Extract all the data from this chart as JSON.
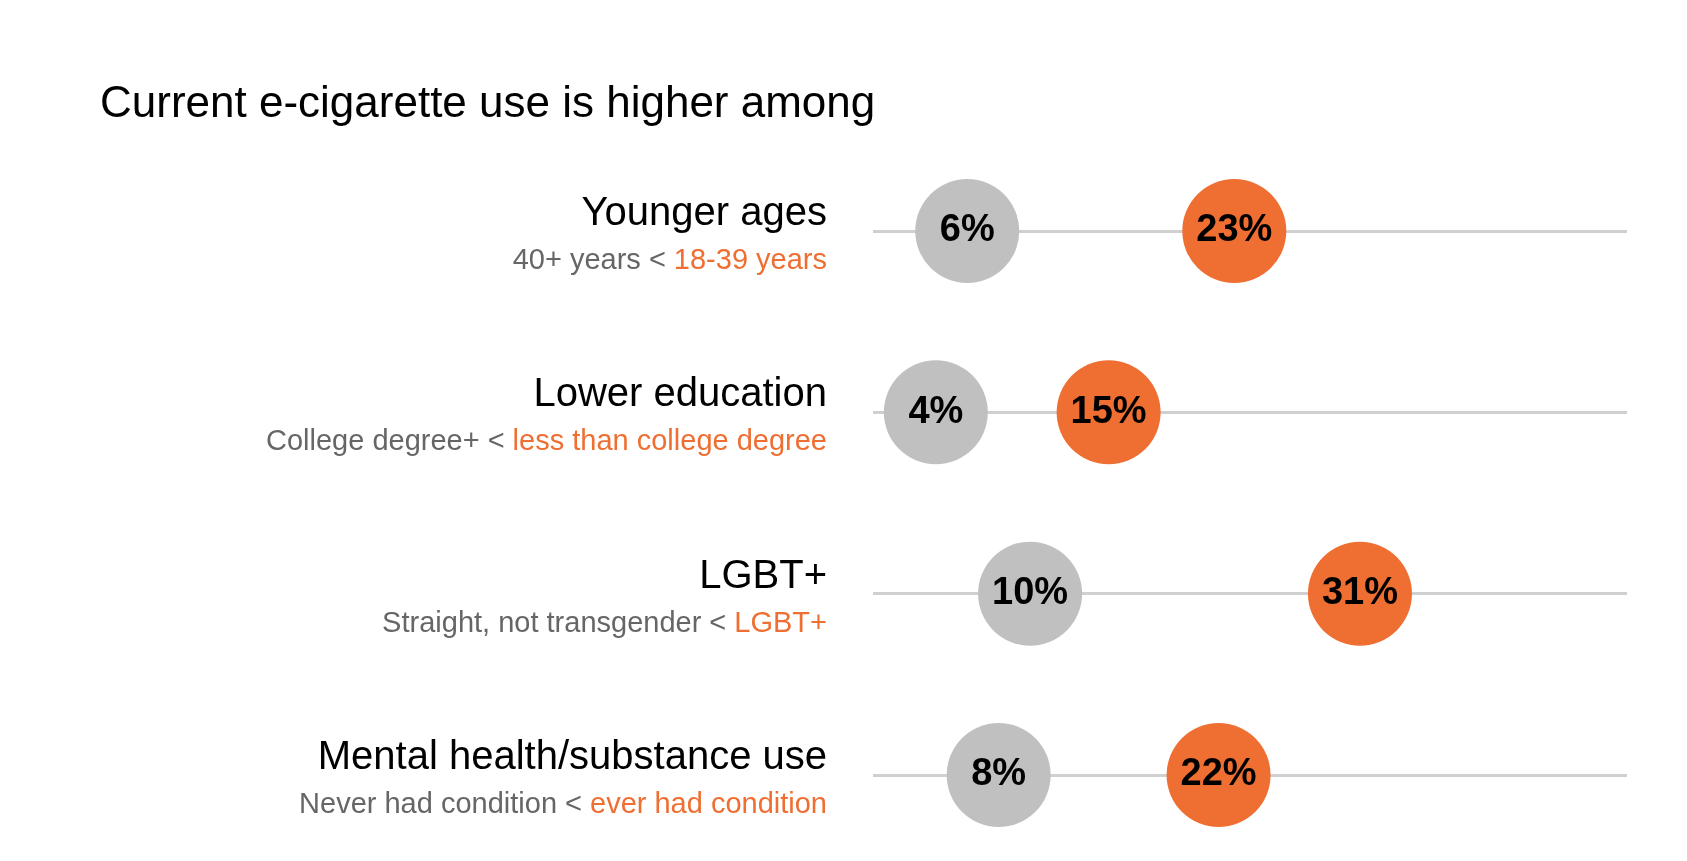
{
  "chart_data": {
    "type": "scatter",
    "orientation": "horizontal",
    "title": "Current e-cigarette use is higher among",
    "categories": [
      "Younger ages",
      "Lower education",
      "LGBT+",
      "Mental health/substance use"
    ],
    "series": [
      {
        "color": "#c0c0c0",
        "values": [
          6,
          4,
          10,
          8
        ],
        "value_labels": [
          "6%",
          "4%",
          "10%",
          "8%"
        ]
      },
      {
        "color": "#ef6f33",
        "values": [
          23,
          15,
          31,
          22
        ],
        "value_labels": [
          "23%",
          "15%",
          "31%",
          "22%"
        ]
      }
    ],
    "annotations": [
      "40+ years <",
      "18-39 years",
      "College degree+ <",
      "less than college degree",
      "Straight, not transgender <",
      "LGBT+",
      "Never had condition <",
      "ever had condition"
    ],
    "xlim": [
      0,
      48
    ],
    "grid": "y",
    "marker": "circle",
    "data_labels": true,
    "legend": false
  }
}
